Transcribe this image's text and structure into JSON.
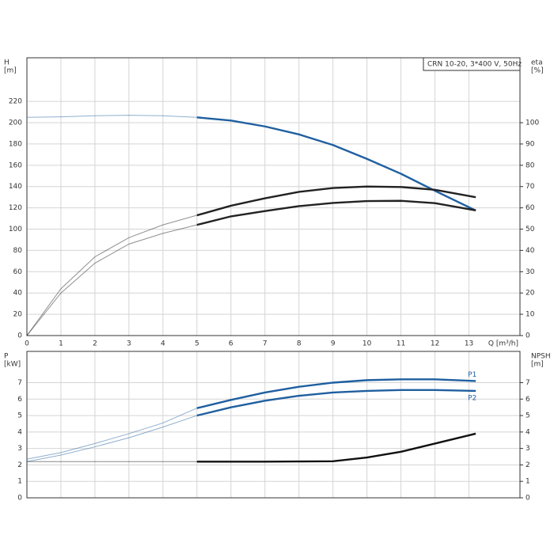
{
  "chart_data": [
    {
      "type": "line",
      "annotation": "CRN 10-20, 3*400 V, 50Hz",
      "xlabel": "Q [m³/h]",
      "ylabel": [
        "H",
        "[m]"
      ],
      "y2label": [
        "eta",
        "[%]"
      ],
      "x": [
        0,
        1,
        2,
        3,
        4,
        5,
        6,
        7,
        8,
        9,
        10,
        11,
        12,
        13.2
      ],
      "xlim": [
        0,
        14.5
      ],
      "xticks": [
        0,
        1,
        2,
        3,
        4,
        5,
        6,
        7,
        8,
        9,
        10,
        11,
        12,
        13
      ],
      "xtick_labels": true,
      "ylim": [
        0,
        261
      ],
      "yticks": [
        0,
        20,
        40,
        60,
        80,
        100,
        120,
        140,
        160,
        180,
        200,
        220
      ],
      "y2lim": [
        0,
        130.5
      ],
      "y2ticks": [
        0,
        10,
        20,
        30,
        40,
        50,
        60,
        70,
        80,
        90,
        100
      ],
      "grid": true,
      "duty_range": [
        5,
        13.2
      ],
      "series": [
        {
          "color": "#1f5fa0",
          "values": [
            205,
            205.5,
            206.5,
            207,
            206.5,
            205,
            202,
            196.5,
            189,
            179,
            166,
            152,
            136,
            117.5
          ]
        },
        {
          "color": "#222222",
          "axis": "y2",
          "values": [
            0,
            22,
            37,
            46,
            52,
            56.5,
            61,
            64.5,
            67.5,
            69.3,
            70,
            69.8,
            68.5,
            65
          ]
        },
        {
          "color": "#222222",
          "axis": "y2",
          "values": [
            0,
            20,
            34,
            43,
            48,
            52,
            56,
            58.5,
            60.8,
            62.3,
            63.2,
            63.3,
            62.2,
            58.8
          ]
        }
      ]
    },
    {
      "type": "line",
      "ylabel": [
        "P",
        "[kW]"
      ],
      "y2label": [
        "NPSH",
        "[m]"
      ],
      "x": [
        0,
        1,
        2,
        3,
        4,
        5,
        6,
        7,
        8,
        9,
        10,
        11,
        12,
        13.2
      ],
      "xlim": [
        0,
        14.5
      ],
      "xticks": [
        0,
        1,
        2,
        3,
        4,
        5,
        6,
        7,
        8,
        9,
        10,
        11,
        12,
        13
      ],
      "xtick_labels": false,
      "ylim": [
        0,
        8.9
      ],
      "yticks": [
        0,
        1,
        2,
        3,
        4,
        5,
        6,
        7
      ],
      "y2lim": [
        0,
        8.9
      ],
      "y2ticks": [
        0,
        1,
        2,
        3,
        4,
        5,
        6,
        7
      ],
      "grid": true,
      "duty_range": [
        5,
        13.2
      ],
      "series": [
        {
          "name": "P1",
          "color": "#1f5fa0",
          "values": [
            2.35,
            2.75,
            3.3,
            3.9,
            4.55,
            5.45,
            5.95,
            6.4,
            6.75,
            7.0,
            7.15,
            7.2,
            7.2,
            7.1
          ]
        },
        {
          "name": "P2",
          "color": "#1f5fa0",
          "values": [
            2.2,
            2.6,
            3.1,
            3.65,
            4.3,
            5.0,
            5.5,
            5.9,
            6.2,
            6.4,
            6.5,
            6.55,
            6.55,
            6.5
          ]
        },
        {
          "color": "#111111",
          "axis": "y2",
          "values": [
            2.2,
            2.2,
            2.2,
            2.2,
            2.2,
            2.2,
            2.2,
            2.2,
            2.21,
            2.22,
            2.45,
            2.8,
            3.3,
            3.9
          ]
        }
      ]
    }
  ]
}
